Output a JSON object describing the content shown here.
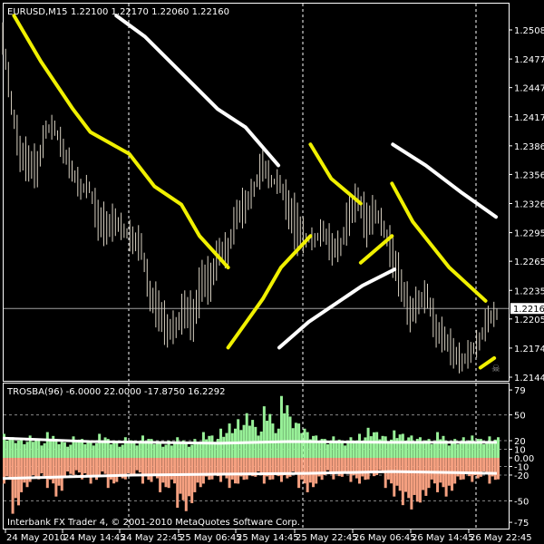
{
  "header": {
    "symbol": "EURUSD,M15",
    "ohlc": "1.22100 1.22170 1.22060 1.22160"
  },
  "indicator": {
    "title": "TROSBA(96) -6.0000 22.0000 -17.8750 16.2292"
  },
  "footer": {
    "copyright": "Interbank FX Trader 4, © 2001-2010 MetaQuotes Software Corp."
  },
  "colors": {
    "background": "#000000",
    "bars": "#d9d2c3",
    "trend_yellow": "#f0f000",
    "trend_white": "#ffffff",
    "hist_positive": "#98f098",
    "hist_negative": "#f5a080",
    "grid": "#ffffff"
  },
  "icons": {
    "expert": "skull-icon"
  },
  "chart_data": [
    {
      "type": "bar",
      "title": "EURUSD,M15",
      "price_axis_ticks": [
        "1.25080",
        "1.24775",
        "1.24475",
        "1.24170",
        "1.23865",
        "1.23565",
        "1.23260",
        "1.22955",
        "1.22655",
        "1.22350",
        "1.22050",
        "1.21745",
        "1.21440"
      ],
      "current_price": "1.22160",
      "ylim": [
        1.2144,
        1.2508
      ],
      "time_axis_ticks": [
        "24 May 2010",
        "24 May 14:45",
        "24 May 22:45",
        "25 May 06:45",
        "25 May 14:45",
        "25 May 22:45",
        "26 May 06:45",
        "26 May 14:45",
        "26 May 22:45"
      ],
      "high_low": [
        [
          1.2516,
          1.2482
        ],
        [
          1.2444,
          1.2419
        ],
        [
          1.2397,
          1.2359
        ],
        [
          1.2387,
          1.2349
        ],
        [
          1.2381,
          1.2343
        ],
        [
          1.2413,
          1.2394
        ],
        [
          1.2413,
          1.2397
        ],
        [
          1.2394,
          1.2368
        ],
        [
          1.2371,
          1.2349
        ],
        [
          1.2352,
          1.233
        ],
        [
          1.2349,
          1.2337
        ],
        [
          1.233,
          1.2287
        ],
        [
          1.2318,
          1.2283
        ],
        [
          1.2321,
          1.2292
        ],
        [
          1.2305,
          1.229
        ],
        [
          1.2302,
          1.2273
        ],
        [
          1.2295,
          1.2267
        ],
        [
          1.2245,
          1.2213
        ],
        [
          1.2235,
          1.2192
        ],
        [
          1.221,
          1.2175
        ],
        [
          1.2207,
          1.2185
        ],
        [
          1.2235,
          1.2195
        ],
        [
          1.2226,
          1.2181
        ],
        [
          1.2267,
          1.2223
        ],
        [
          1.2264,
          1.2223
        ],
        [
          1.229,
          1.2261
        ],
        [
          1.229,
          1.2261
        ],
        [
          1.233,
          1.2299
        ],
        [
          1.234,
          1.2305
        ],
        [
          1.2349,
          1.2333
        ],
        [
          1.2384,
          1.2349
        ],
        [
          1.2356,
          1.2343
        ],
        [
          1.2356,
          1.2337
        ],
        [
          1.234,
          1.2299
        ],
        [
          1.2327,
          1.2271
        ],
        [
          1.2295,
          1.228
        ],
        [
          1.2295,
          1.228
        ],
        [
          1.2308,
          1.2286
        ],
        [
          1.2295,
          1.2261
        ],
        [
          1.229,
          1.2271
        ],
        [
          1.2337,
          1.2292
        ],
        [
          1.2343,
          1.2318
        ],
        [
          1.2327,
          1.228
        ],
        [
          1.233,
          1.2305
        ],
        [
          1.2308,
          1.229
        ],
        [
          1.2292,
          1.2248
        ],
        [
          1.2257,
          1.2223
        ],
        [
          1.2229,
          1.2191
        ],
        [
          1.2235,
          1.221
        ],
        [
          1.2242,
          1.2216
        ],
        [
          1.221,
          1.2175
        ],
        [
          1.2197,
          1.2172
        ],
        [
          1.2185,
          1.2153
        ],
        [
          1.2169,
          1.215
        ],
        [
          1.2181,
          1.2159
        ],
        [
          1.2191,
          1.2172
        ],
        [
          1.2219,
          1.2191
        ],
        [
          1.2216,
          1.2204
        ]
      ],
      "trend_lines": [
        {
          "color": "yellow",
          "points": [
            [
              1.3,
              1.2523
            ],
            [
              4.4,
              1.2475
            ],
            [
              8.1,
              1.2425
            ],
            [
              10.1,
              1.2401
            ],
            [
              14.6,
              1.2378
            ],
            [
              17.5,
              1.2344
            ],
            [
              20.6,
              1.2325
            ],
            [
              22.7,
              1.2292
            ],
            [
              26.0,
              1.2259
            ]
          ]
        },
        {
          "color": "yellow",
          "points": [
            [
              26.0,
              1.2175
            ],
            [
              30.0,
              1.2226
            ],
            [
              32.1,
              1.2259
            ],
            [
              35.5,
              1.2292
            ]
          ]
        },
        {
          "color": "yellow",
          "points": [
            [
              35.5,
              1.2388
            ],
            [
              37.9,
              1.2352
            ],
            [
              41.3,
              1.2326
            ]
          ]
        },
        {
          "color": "yellow",
          "points": [
            [
              41.3,
              1.2264
            ],
            [
              44.9,
              1.2292
            ]
          ]
        },
        {
          "color": "yellow",
          "points": [
            [
              44.9,
              1.2347
            ],
            [
              47.3,
              1.2307
            ],
            [
              51.5,
              1.2259
            ],
            [
              55.7,
              1.2224
            ]
          ]
        },
        {
          "color": "yellow",
          "points": [
            [
              55.1,
              1.2154
            ],
            [
              56.7,
              1.2164
            ]
          ]
        },
        {
          "color": "white",
          "points": [
            [
              13.1,
              1.2523
            ],
            [
              16.4,
              1.2501
            ],
            [
              20.6,
              1.2463
            ],
            [
              24.8,
              1.2425
            ],
            [
              28.0,
              1.2406
            ],
            [
              31.8,
              1.2366
            ]
          ]
        },
        {
          "color": "white",
          "points": [
            [
              31.9,
              1.2175
            ],
            [
              35.3,
              1.2202
            ],
            [
              38.4,
              1.2221
            ],
            [
              41.5,
              1.224
            ],
            [
              45.2,
              1.2257
            ]
          ]
        },
        {
          "color": "white",
          "points": [
            [
              45.0,
              1.2388
            ],
            [
              48.8,
              1.2366
            ],
            [
              53.0,
              1.2337
            ],
            [
              56.9,
              1.2312
            ]
          ]
        }
      ]
    },
    {
      "type": "bar",
      "title": "TROSBA(96)",
      "ylim": [
        -75,
        79
      ],
      "axis_ticks": [
        "79",
        "50",
        "20",
        "10",
        "0.00",
        "-10",
        "-20",
        "-50",
        "-75"
      ],
      "grid_levels": [
        50,
        20,
        10,
        -10,
        -20,
        -50
      ],
      "positive": [
        28,
        24,
        22,
        26,
        20,
        30,
        22,
        18,
        25,
        22,
        20,
        28,
        22,
        18,
        24,
        20,
        26,
        22,
        18,
        20,
        24,
        18,
        22,
        30,
        26,
        34,
        40,
        45,
        52,
        36,
        60,
        40,
        72,
        48,
        40,
        30,
        26,
        22,
        25,
        20,
        24,
        28,
        35,
        30,
        25,
        32,
        28,
        26,
        24,
        22,
        30,
        20,
        22,
        24,
        26,
        22,
        25,
        24
      ],
      "negative": [
        -30,
        -65,
        -40,
        -28,
        -25,
        -35,
        -45,
        -22,
        -20,
        -25,
        -30,
        -22,
        -35,
        -28,
        -25,
        -20,
        -30,
        -28,
        -40,
        -35,
        -58,
        -62,
        -40,
        -30,
        -25,
        -28,
        -35,
        -30,
        -25,
        -22,
        -30,
        -25,
        -28,
        -22,
        -35,
        -40,
        -30,
        -20,
        -25,
        -22,
        -28,
        -30,
        -25,
        -20,
        -35,
        -45,
        -55,
        -60,
        -52,
        -35,
        -40,
        -45,
        -30,
        -25,
        -28,
        -22,
        -30,
        -25
      ],
      "upper_line": [
        [
          0,
          23
        ],
        [
          10,
          19
        ],
        [
          25,
          17
        ],
        [
          33,
          19
        ],
        [
          45,
          18
        ],
        [
          57,
          18
        ]
      ],
      "lower_line": [
        [
          0,
          -24
        ],
        [
          15,
          -20
        ],
        [
          35,
          -18
        ],
        [
          45,
          -16
        ],
        [
          57,
          -18
        ]
      ]
    }
  ]
}
